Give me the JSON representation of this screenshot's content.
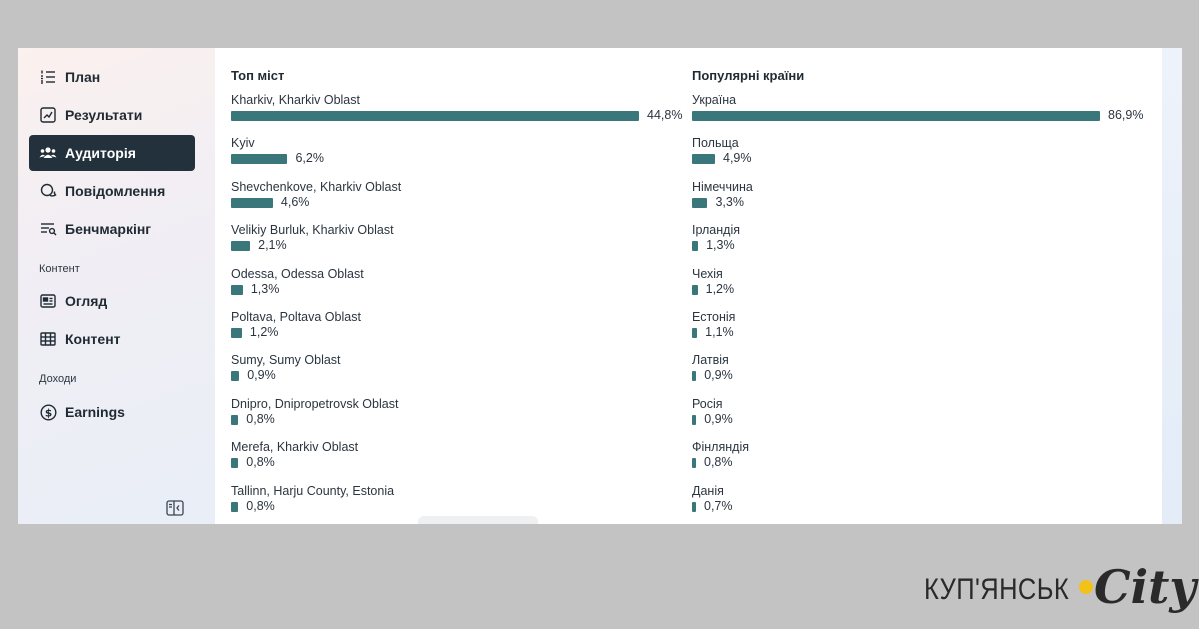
{
  "sidebar": {
    "items": [
      {
        "label": "План",
        "icon": "list-numbered-icon",
        "active": false
      },
      {
        "label": "Результати",
        "icon": "chart-trend-icon",
        "active": false
      },
      {
        "label": "Аудиторія",
        "icon": "people-icon",
        "active": true
      },
      {
        "label": "Повідомлення",
        "icon": "chat-bubble-icon",
        "active": false
      },
      {
        "label": "Бенчмаркінг",
        "icon": "list-search-icon",
        "active": false
      }
    ],
    "content_section_label": "Контент",
    "content_items": [
      {
        "label": "Огляд",
        "icon": "overview-card-icon"
      },
      {
        "label": "Контент",
        "icon": "table-grid-icon"
      }
    ],
    "income_section_label": "Доходи",
    "income_items": [
      {
        "label": "Earnings",
        "icon": "dollar-circle-icon"
      }
    ],
    "collapse_icon": "sidebar-collapse-icon"
  },
  "cities": {
    "title": "Топ міст",
    "rows": [
      {
        "name": "Kharkiv, Kharkiv Oblast",
        "pct": "44,8%",
        "value": 44.8
      },
      {
        "name": "Kyiv",
        "pct": "6,2%",
        "value": 6.2
      },
      {
        "name": "Shevchenkove, Kharkiv Oblast",
        "pct": "4,6%",
        "value": 4.6
      },
      {
        "name": "Velikiy Burluk, Kharkiv Oblast",
        "pct": "2,1%",
        "value": 2.1
      },
      {
        "name": "Odessa, Odessa Oblast",
        "pct": "1,3%",
        "value": 1.3
      },
      {
        "name": "Poltava, Poltava Oblast",
        "pct": "1,2%",
        "value": 1.2
      },
      {
        "name": "Sumy, Sumy Oblast",
        "pct": "0,9%",
        "value": 0.9
      },
      {
        "name": "Dnipro, Dnipropetrovsk Oblast",
        "pct": "0,8%",
        "value": 0.8
      },
      {
        "name": "Merefa, Kharkiv Oblast",
        "pct": "0,8%",
        "value": 0.8
      },
      {
        "name": "Tallinn, Harju County, Estonia",
        "pct": "0,8%",
        "value": 0.8
      }
    ]
  },
  "countries": {
    "title": "Популярні країни",
    "rows": [
      {
        "name": "Україна",
        "pct": "86,9%",
        "value": 86.9
      },
      {
        "name": "Польща",
        "pct": "4,9%",
        "value": 4.9
      },
      {
        "name": "Німеччина",
        "pct": "3,3%",
        "value": 3.3
      },
      {
        "name": "Ірландія",
        "pct": "1,3%",
        "value": 1.3
      },
      {
        "name": "Чехія",
        "pct": "1,2%",
        "value": 1.2
      },
      {
        "name": "Естонія",
        "pct": "1,1%",
        "value": 1.1
      },
      {
        "name": "Латвія",
        "pct": "0,9%",
        "value": 0.9
      },
      {
        "name": "Росія",
        "pct": "0,9%",
        "value": 0.9
      },
      {
        "name": "Фінляндія",
        "pct": "0,8%",
        "value": 0.8
      },
      {
        "name": "Данія",
        "pct": "0,7%",
        "value": 0.7
      }
    ]
  },
  "brand": {
    "text": "КУП'ЯНСЬК",
    "script": "City",
    "dot_color": "#f2c21b"
  },
  "colors": {
    "bar": "#3a777b",
    "active_nav": "#22313b"
  }
}
